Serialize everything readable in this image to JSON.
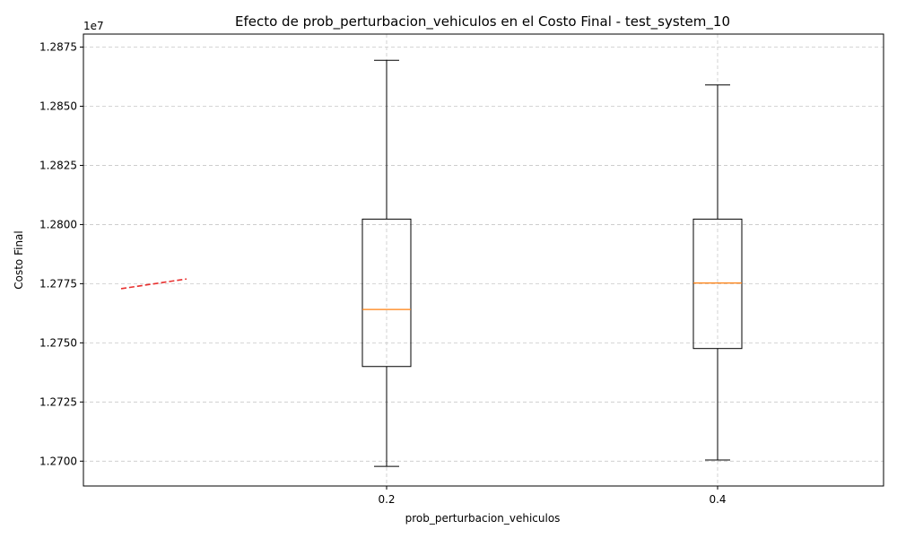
{
  "chart_data": {
    "type": "box",
    "title": "Efecto de prob_perturbacion_vehiculos en el Costo Final - test_system_10",
    "xlabel": "prob_perturbacion_vehiculos",
    "ylabel": "Costo Final",
    "y_offset_label": "1e7",
    "categories": [
      "0.2",
      "0.4"
    ],
    "y_ticks": [
      "1.2700",
      "1.2725",
      "1.2750",
      "1.2775",
      "1.2800",
      "1.2825",
      "1.2850",
      "1.2875"
    ],
    "ylim": [
      1.26895,
      1.28805
    ],
    "grid": true,
    "boxes": [
      {
        "category": "0.2",
        "whisker_low": 1.26978,
        "q1": 1.274,
        "median": 1.27641,
        "q3": 1.28023,
        "whisker_high": 1.28694
      },
      {
        "category": "0.4",
        "whisker_low": 1.27005,
        "q1": 1.27476,
        "median": 1.27753,
        "q3": 1.28023,
        "whisker_high": 1.2859
      }
    ],
    "trend_line": {
      "y_start": 1.27729,
      "y_end": 1.2777
    },
    "colors": {
      "box": "#000000",
      "median": "#ff7f0e",
      "trend": "#e8302f",
      "grid": "#c8c8c8"
    }
  }
}
